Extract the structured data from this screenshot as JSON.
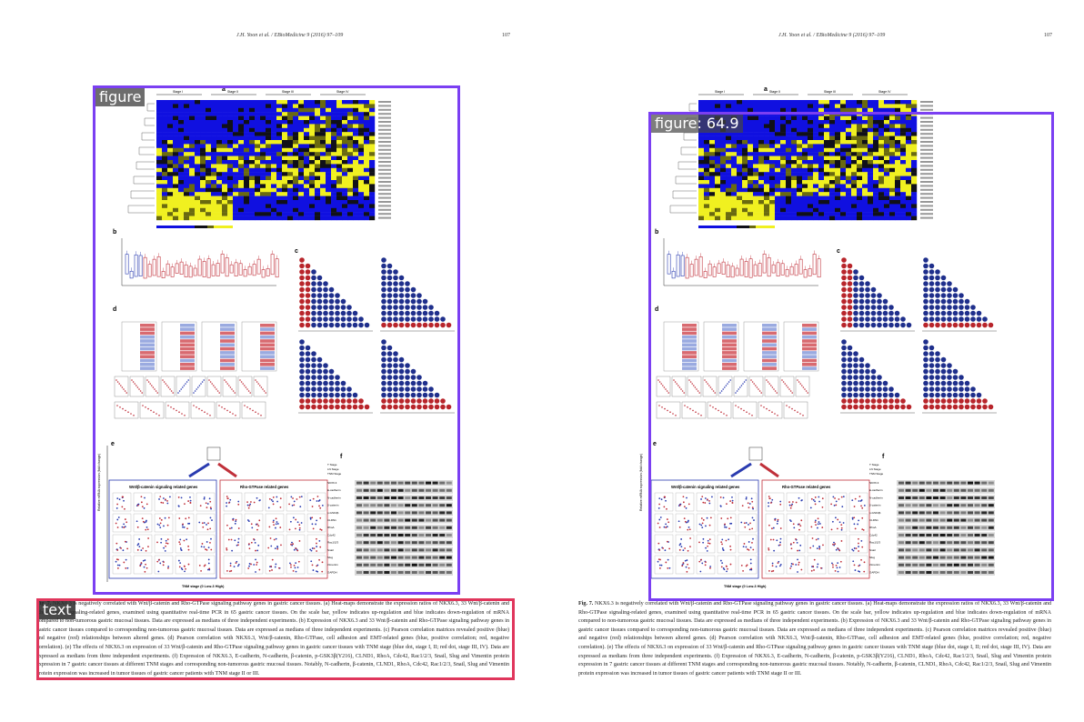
{
  "page_header": {
    "citation": "J.H. Yoon et al. / EBioMedicine 9 (2016) 97–109",
    "page_number": "107"
  },
  "figure": {
    "panels": [
      "a",
      "b",
      "c",
      "d",
      "e",
      "f"
    ],
    "heatmap_stages": [
      "Stage I",
      "Stage II",
      "Stage III",
      "Stage IV"
    ],
    "panel_e_titles": [
      "Wnt/β-catenin signaling related genes",
      "Rho-GTPase related genes"
    ],
    "panel_e_xlabel": "TNM stage (0 Low-3 High)",
    "panel_e_ylabel": "Relative mRNA expression (fold change)",
    "panel_f_rows": [
      "T Stage",
      "LN Stage",
      "TNM Stage"
    ],
    "panel_f_blots": [
      "NKX6.3",
      "E-cadherin",
      "N-cadherin",
      "β-catenin",
      "p-GSK3β",
      "CLDN1",
      "RhoA",
      "Cdc42",
      "Rac1/2/3",
      "Snail",
      "Slug",
      "Vimentin",
      "GAPDH"
    ]
  },
  "caption": {
    "label": "Fig. 7.",
    "text": "NKX6.3 is negatively correlated with Wnt/β-catenin and Rho-GTPase signaling pathway genes in gastric cancer tissues. (a) Heat-maps demonstrate the expression ratios of NKX6.3, 33 Wnt/β-catenin and Rho-GTPase signaling-related genes, examined using quantitative real-time PCR in 65 gastric cancer tissues. On the scale bar, yellow indicates up-regulation and blue indicates down-regulation of mRNA compared to non-tumorous gastric mucosal tissues. Data are expressed as medians of three independent experiments. (b) Expression of NKX6.3 and 33 Wnt/β-catenin and Rho-GTPase signaling pathway genes in gastric cancer tissues compared to corresponding non-tumorous gastric mucosal tissues. Data are expressed as medians of three independent experiments. (c) Pearson correlation matrices revealed positive (blue) and negative (red) relationships between altered genes. (d) Pearson correlation with NKX6.3, Wnt/β-catenin, Rho-GTPase, cell adhesion and EMT-related genes (blue, positive correlation; red, negative correlation). (e) The effects of NKX6.3 on expression of 33 Wnt/β-catenin and Rho-GTPase signaling pathway genes in gastric cancer tissues with TNM stage (blue dot, stage I, II; red dot, stage III, IV). Data are expressed as medians from three independent experiments. (f) Expression of NKX6.3, E-cadherin, N-cadherin, β-catenin, p-GSK3β(Y216), CLND1, RhoA, Cdc42, Rac1/2/3, Snail, Slug and Vimentin protein expression in 7 gastric cancer tissues at different TNM stages and corresponding non-tumorous gastric mucosal tissues. Notably, N-cadherin, β-catenin, CLND1, RhoA, Cdc42, Rac1/2/3, Snail, Slug and Vimentin protein expression was increased in tumor tissues of gastric cancer patients with TNM stage II or III."
  },
  "detections": {
    "left_figure": "figure",
    "left_text": "text",
    "right_figure": "figure: 64.9"
  },
  "colors": {
    "heat_low": "#1010e0",
    "heat_mid": "#101018",
    "heat_high": "#f0f020",
    "positive": "#1f2f8c",
    "negative": "#b8252b",
    "figure_box": "#7b3ff2",
    "text_box": "#e0365c"
  }
}
